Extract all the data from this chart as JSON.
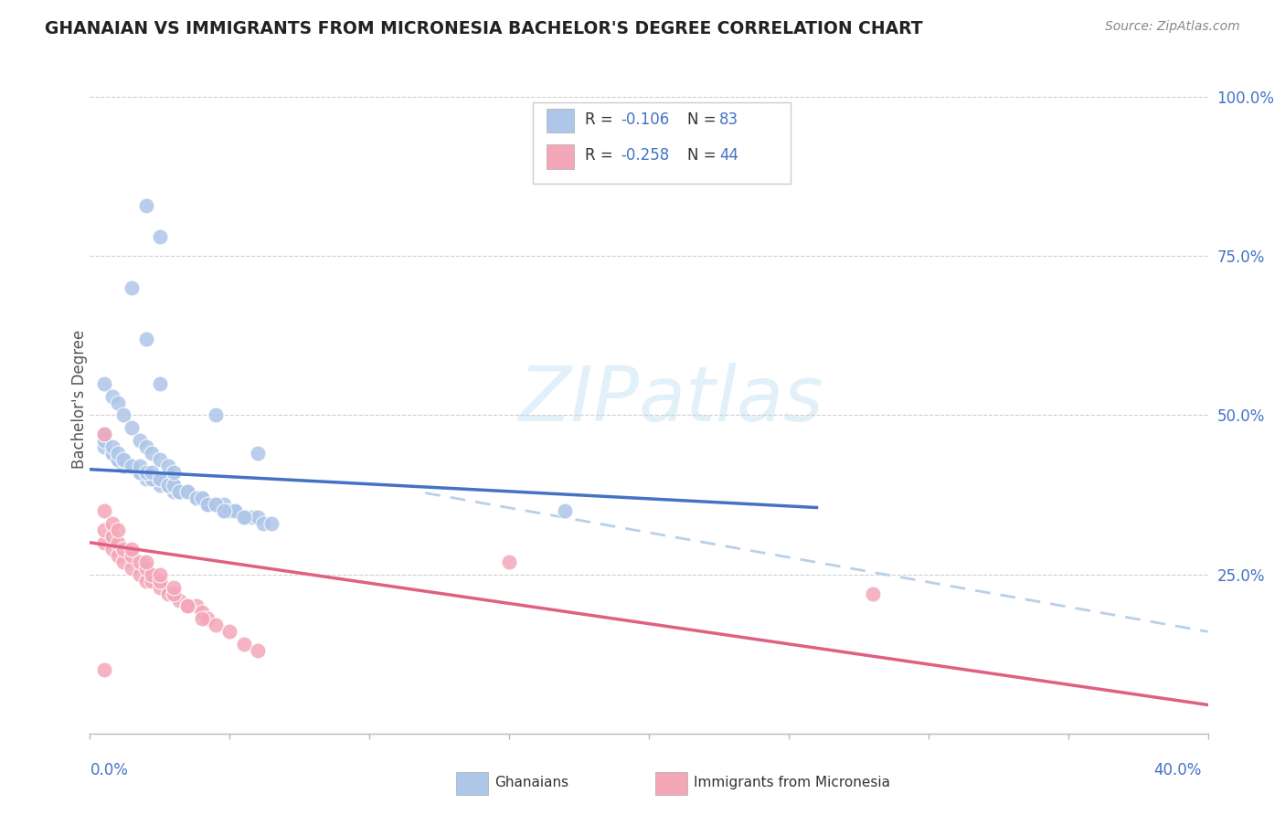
{
  "title": "GHANAIAN VS IMMIGRANTS FROM MICRONESIA BACHELOR'S DEGREE CORRELATION CHART",
  "source": "Source: ZipAtlas.com",
  "ylabel": "Bachelor's Degree",
  "blue_color": "#aec6e8",
  "pink_color": "#f4a7b9",
  "blue_line_color": "#4472c4",
  "pink_line_color": "#e06080",
  "dashed_line_color": "#b8d0e8",
  "text_color": "#4472c4",
  "grid_color": "#d0d0d0",
  "xmin": 0.0,
  "xmax": 0.4,
  "ymin": 0.0,
  "ymax": 1.05,
  "blue_x": [
    0.005,
    0.008,
    0.01,
    0.012,
    0.015,
    0.018,
    0.02,
    0.022,
    0.025,
    0.028,
    0.03,
    0.032,
    0.035,
    0.038,
    0.04,
    0.042,
    0.045,
    0.048,
    0.05,
    0.052,
    0.055,
    0.058,
    0.06,
    0.062,
    0.065,
    0.005,
    0.008,
    0.01,
    0.012,
    0.015,
    0.018,
    0.02,
    0.022,
    0.025,
    0.028,
    0.03,
    0.032,
    0.035,
    0.038,
    0.04,
    0.042,
    0.045,
    0.048,
    0.05,
    0.052,
    0.055,
    0.005,
    0.008,
    0.01,
    0.012,
    0.015,
    0.018,
    0.02,
    0.022,
    0.025,
    0.028,
    0.03,
    0.032,
    0.035,
    0.038,
    0.04,
    0.042,
    0.045,
    0.048,
    0.005,
    0.008,
    0.01,
    0.012,
    0.015,
    0.018,
    0.02,
    0.022,
    0.025,
    0.028,
    0.03,
    0.17,
    0.015,
    0.02,
    0.025,
    0.045,
    0.06,
    0.02,
    0.025
  ],
  "blue_y": [
    0.45,
    0.44,
    0.43,
    0.42,
    0.42,
    0.41,
    0.4,
    0.4,
    0.39,
    0.39,
    0.38,
    0.38,
    0.38,
    0.37,
    0.37,
    0.36,
    0.36,
    0.35,
    0.35,
    0.35,
    0.34,
    0.34,
    0.34,
    0.33,
    0.33,
    0.46,
    0.44,
    0.43,
    0.43,
    0.42,
    0.41,
    0.41,
    0.4,
    0.4,
    0.39,
    0.39,
    0.38,
    0.38,
    0.37,
    0.37,
    0.36,
    0.36,
    0.36,
    0.35,
    0.35,
    0.34,
    0.47,
    0.45,
    0.44,
    0.43,
    0.42,
    0.42,
    0.41,
    0.41,
    0.4,
    0.39,
    0.39,
    0.38,
    0.38,
    0.37,
    0.37,
    0.36,
    0.36,
    0.35,
    0.55,
    0.53,
    0.52,
    0.5,
    0.48,
    0.46,
    0.45,
    0.44,
    0.43,
    0.42,
    0.41,
    0.35,
    0.7,
    0.62,
    0.55,
    0.5,
    0.44,
    0.83,
    0.78
  ],
  "pink_x": [
    0.005,
    0.008,
    0.01,
    0.012,
    0.015,
    0.018,
    0.02,
    0.022,
    0.025,
    0.028,
    0.03,
    0.032,
    0.035,
    0.038,
    0.04,
    0.042,
    0.045,
    0.05,
    0.055,
    0.06,
    0.005,
    0.008,
    0.01,
    0.012,
    0.015,
    0.018,
    0.02,
    0.022,
    0.025,
    0.03,
    0.035,
    0.04,
    0.005,
    0.008,
    0.01,
    0.015,
    0.02,
    0.025,
    0.03,
    0.035,
    0.15,
    0.28,
    0.005,
    0.005
  ],
  "pink_y": [
    0.3,
    0.29,
    0.28,
    0.27,
    0.26,
    0.25,
    0.24,
    0.24,
    0.23,
    0.22,
    0.22,
    0.21,
    0.2,
    0.2,
    0.19,
    0.18,
    0.17,
    0.16,
    0.14,
    0.13,
    0.32,
    0.31,
    0.3,
    0.29,
    0.28,
    0.27,
    0.26,
    0.25,
    0.24,
    0.22,
    0.2,
    0.18,
    0.35,
    0.33,
    0.32,
    0.29,
    0.27,
    0.25,
    0.23,
    0.2,
    0.27,
    0.22,
    0.47,
    0.1
  ],
  "blue_line_x0": 0.0,
  "blue_line_x1": 0.26,
  "blue_line_y0": 0.415,
  "blue_line_y1": 0.355,
  "pink_line_x0": 0.0,
  "pink_line_x1": 0.4,
  "pink_line_y0": 0.3,
  "pink_line_y1": 0.045,
  "dash_line_x0": 0.12,
  "dash_line_x1": 0.4,
  "dash_line_y0": 0.378,
  "dash_line_y1": 0.16
}
